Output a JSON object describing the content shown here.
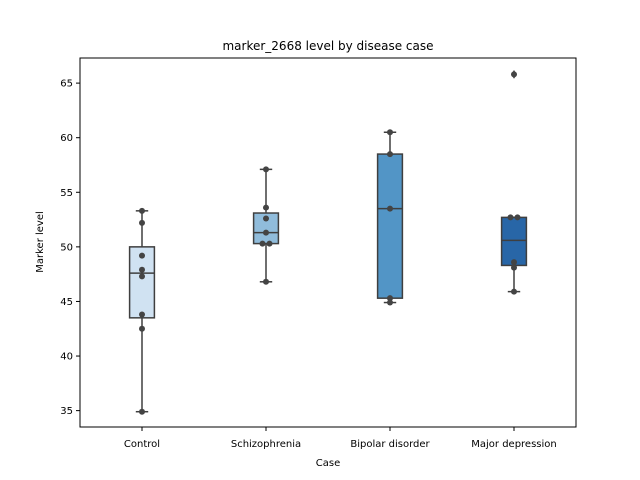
{
  "chart_data": {
    "type": "box",
    "title": "marker_2668 level by disease case",
    "xlabel": "Case",
    "ylabel": "Marker level",
    "ylim": [
      33.5,
      67.3
    ],
    "yticks": [
      35,
      40,
      45,
      50,
      55,
      60,
      65
    ],
    "grid": false,
    "categories": [
      "Control",
      "Schizophrenia",
      "Bipolar disorder",
      "Major depression"
    ],
    "colors": [
      "#d0e2f2",
      "#90bcdb",
      "#5295c6",
      "#2866a7"
    ],
    "boxes": [
      {
        "category": "Control",
        "whisker_low": 34.9,
        "q1": 43.5,
        "median": 47.6,
        "q3": 50.0,
        "whisker_high": 53.3,
        "outliers": []
      },
      {
        "category": "Schizophrenia",
        "whisker_low": 46.8,
        "q1": 50.3,
        "median": 51.3,
        "q3": 53.1,
        "whisker_high": 57.1,
        "outliers": []
      },
      {
        "category": "Bipolar disorder",
        "whisker_low": 44.9,
        "q1": 45.3,
        "median": 53.5,
        "q3": 58.5,
        "whisker_high": 60.5,
        "outliers": []
      },
      {
        "category": "Major depression",
        "whisker_low": 45.9,
        "q1": 48.3,
        "median": 50.6,
        "q3": 52.7,
        "whisker_high": 52.7,
        "outliers": [
          65.8
        ]
      }
    ],
    "points": [
      {
        "category": "Control",
        "values": [
          53.3,
          52.2,
          49.2,
          47.9,
          47.3,
          43.8,
          42.5,
          34.9
        ]
      },
      {
        "category": "Schizophrenia",
        "values": [
          57.1,
          53.6,
          52.6,
          51.3,
          50.3,
          50.3,
          46.8
        ]
      },
      {
        "category": "Bipolar disorder",
        "values": [
          60.5,
          58.5,
          53.5,
          45.3,
          44.9
        ]
      },
      {
        "category": "Major depression",
        "values": [
          65.8,
          52.7,
          52.7,
          48.6,
          48.1,
          45.9
        ]
      }
    ]
  }
}
